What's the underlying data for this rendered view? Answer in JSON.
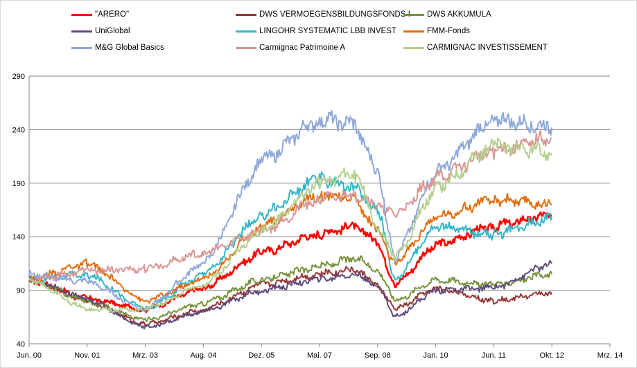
{
  "chart_data": {
    "type": "line",
    "title": "",
    "xlabel": "",
    "ylabel": "",
    "ylim": [
      40,
      290
    ],
    "y_ticks": [
      40,
      90,
      140,
      190,
      240,
      290
    ],
    "x_ticks": [
      "Jun. 00",
      "Nov. 01",
      "Mrz. 03",
      "Aug. 04",
      "Dez. 05",
      "Mai. 07",
      "Sep. 08",
      "Jan. 10",
      "Jun. 11",
      "Okt. 12",
      "Mrz. 14"
    ],
    "x_range": [
      "Jun. 00",
      "Mrz. 14"
    ],
    "grid": "horizontal",
    "legend_position": "top",
    "x": [
      "Jun. 00",
      "Nov. 01",
      "Mrz. 03",
      "Aug. 04",
      "Dez. 05",
      "Mai. 07",
      "Jan. 08",
      "Sep. 08",
      "Mrz. 09",
      "Jan. 10",
      "Jun. 11",
      "Okt. 12"
    ],
    "series": [
      {
        "name": "\"ARERO\"",
        "color": "#ff0000",
        "values": [
          100,
          82,
          72,
          92,
          125,
          143,
          150,
          135,
          95,
          132,
          150,
          160
        ]
      },
      {
        "name": "DWS VERMOEGENSBILDUNGSFONDS  I",
        "color": "#953735",
        "values": [
          100,
          80,
          58,
          72,
          95,
          105,
          110,
          95,
          72,
          92,
          80,
          88
        ]
      },
      {
        "name": "DWS AKKUMULA",
        "color": "#77933c",
        "values": [
          100,
          80,
          62,
          78,
          100,
          112,
          120,
          110,
          80,
          100,
          95,
          105
        ]
      },
      {
        "name": "UniGlobal",
        "color": "#604a7b",
        "values": [
          100,
          82,
          55,
          70,
          90,
          100,
          105,
          95,
          65,
          90,
          92,
          115
        ]
      },
      {
        "name": "LINGOHR SYSTEMATIC  LBB INVEST",
        "color": "#31b6c8",
        "values": [
          100,
          105,
          72,
          105,
          160,
          195,
          185,
          165,
          100,
          150,
          142,
          158
        ]
      },
      {
        "name": "FMM-Fonds",
        "color": "#e46c0a",
        "values": [
          100,
          115,
          80,
          100,
          150,
          180,
          175,
          145,
          115,
          158,
          175,
          170
        ]
      },
      {
        "name": "M&G Global Basics",
        "color": "#8ea8d8",
        "values": [
          105,
          98,
          72,
          115,
          210,
          250,
          245,
          200,
          120,
          200,
          250,
          242
        ]
      },
      {
        "name": "Carmignac Patrimoine A",
        "color": "#d99694",
        "values": [
          100,
          108,
          110,
          125,
          145,
          175,
          180,
          170,
          160,
          195,
          220,
          232
        ]
      },
      {
        "name": "CARMIGNAC INVESTISSEMENT",
        "color": "#b4cf8e",
        "values": [
          100,
          72,
          72,
          95,
          145,
          190,
          200,
          150,
          120,
          185,
          225,
          218
        ]
      }
    ]
  }
}
